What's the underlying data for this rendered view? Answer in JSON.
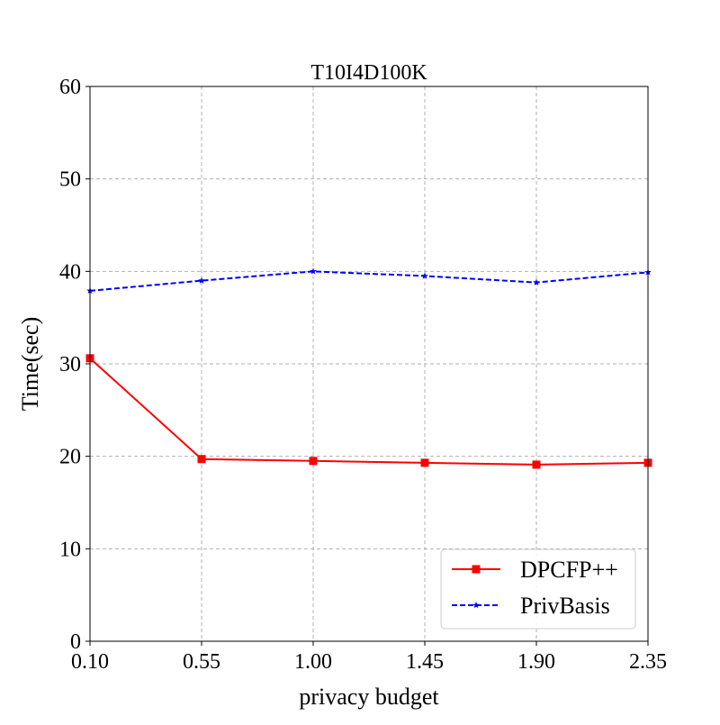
{
  "chart_data": {
    "type": "line",
    "title": "T10I4D100K",
    "xlabel": "privacy budget",
    "ylabel": "Time(sec)",
    "x": [
      0.1,
      0.55,
      1.0,
      1.45,
      1.9,
      2.35
    ],
    "x_tick_labels": [
      "0.10",
      "0.55",
      "1.00",
      "1.45",
      "1.90",
      "2.35"
    ],
    "y_ticks": [
      0,
      10,
      20,
      30,
      40,
      50,
      60
    ],
    "ylim": [
      0,
      60
    ],
    "xlim": [
      0.1,
      2.35
    ],
    "grid": true,
    "legend_position": "bottom-right",
    "series": [
      {
        "name": "DPCFP++",
        "values": [
          30.6,
          19.7,
          19.5,
          19.3,
          19.1,
          19.3
        ],
        "color": "#ff0000",
        "line_style": "solid",
        "marker": "square"
      },
      {
        "name": "PrivBasis",
        "values": [
          37.9,
          39.0,
          40.0,
          39.5,
          38.8,
          39.9
        ],
        "color": "#0000ff",
        "line_style": "dashed",
        "marker": "star"
      }
    ]
  }
}
